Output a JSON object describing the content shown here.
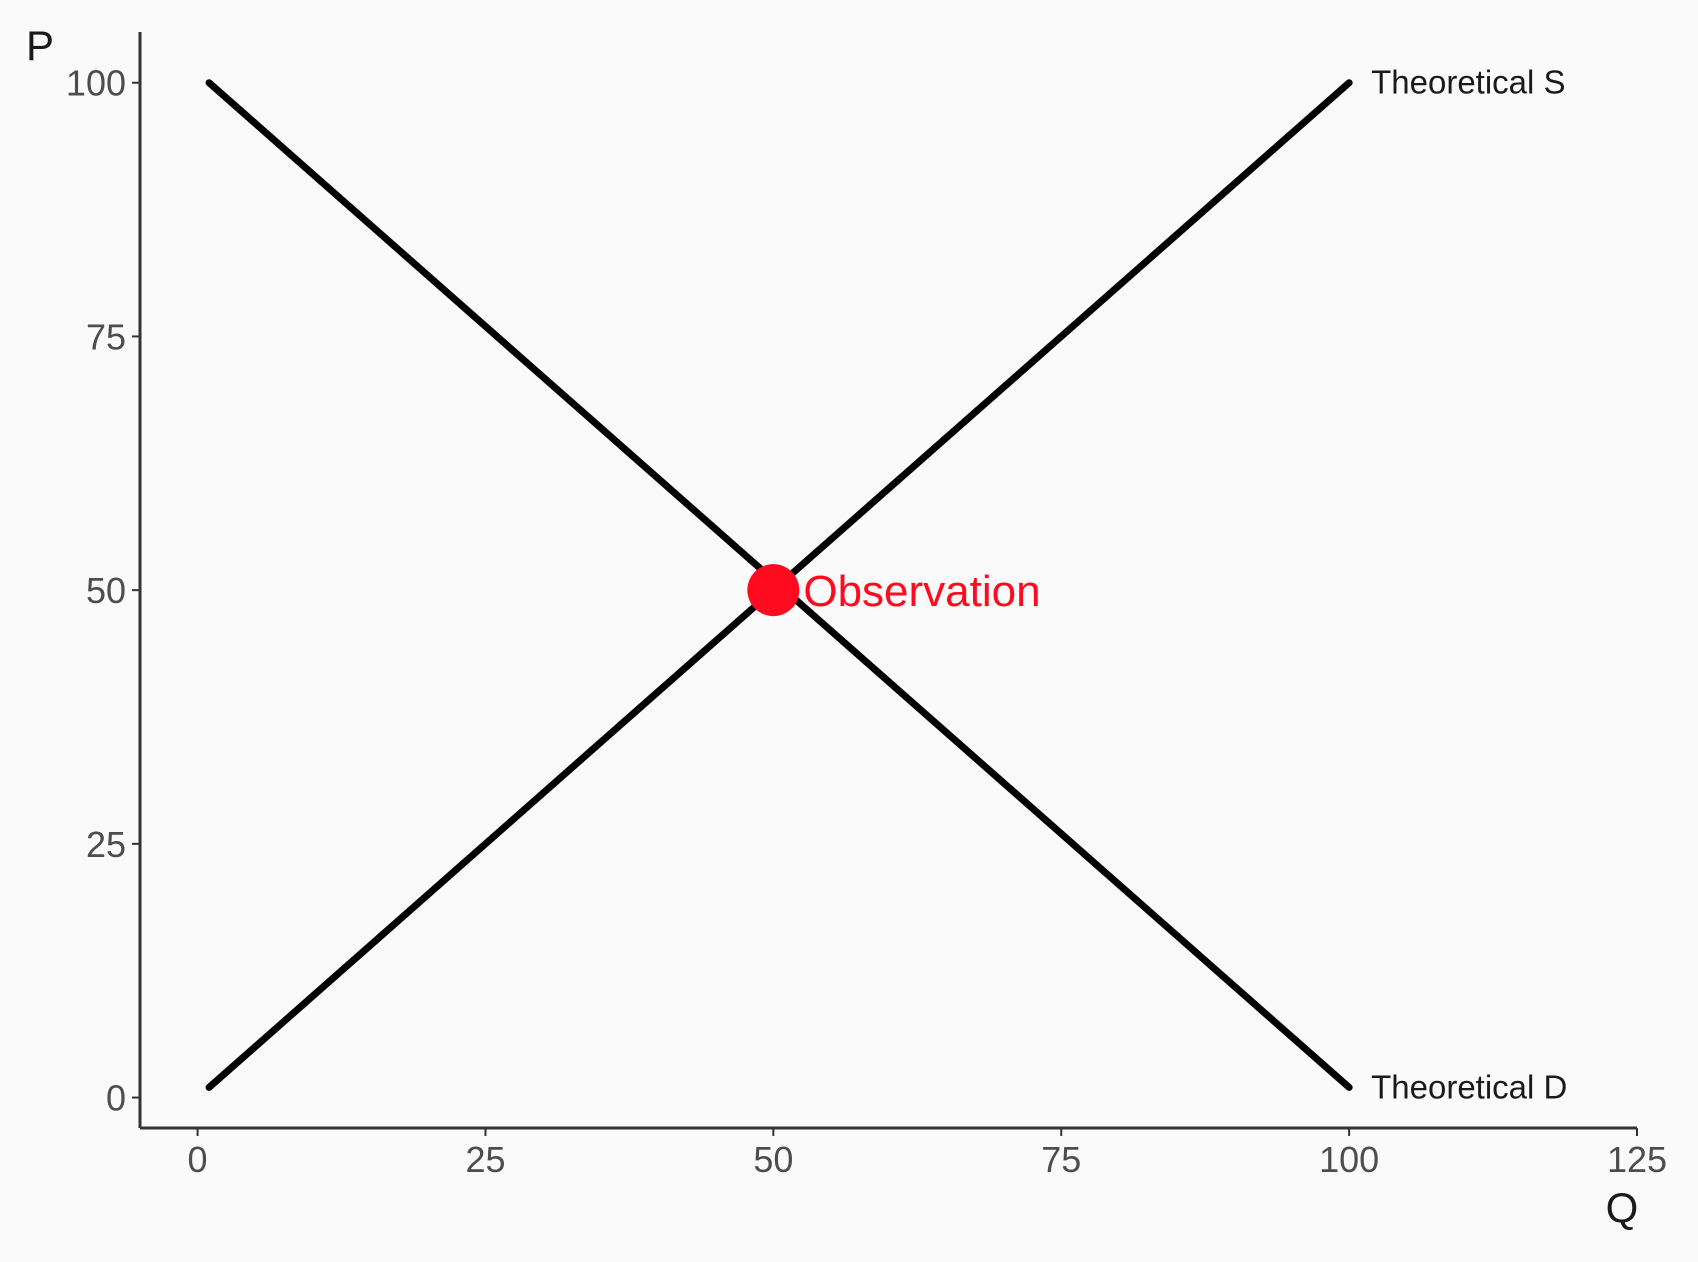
{
  "chart_data": {
    "type": "line",
    "xlabel": "Q",
    "ylabel": "P",
    "xlim": [
      -5,
      125
    ],
    "ylim": [
      -3,
      105
    ],
    "x_ticks": [
      0,
      25,
      50,
      75,
      100,
      125
    ],
    "y_ticks": [
      0,
      25,
      50,
      75,
      100
    ],
    "x_tick_labels": [
      "0",
      "25",
      "50",
      "75",
      "100",
      "125"
    ],
    "y_tick_labels": [
      "0",
      "25",
      "50",
      "75",
      "100"
    ],
    "grid": false,
    "series": [
      {
        "name": "Theoretical S",
        "x": [
          1,
          100
        ],
        "y": [
          1,
          100
        ],
        "color": "#000000"
      },
      {
        "name": "Theoretical D",
        "x": [
          1,
          100
        ],
        "y": [
          100,
          1
        ],
        "color": "#000000"
      }
    ],
    "points": [
      {
        "name": "Observation",
        "x": 50,
        "y": 50,
        "color": "#ff0a1e"
      }
    ]
  }
}
